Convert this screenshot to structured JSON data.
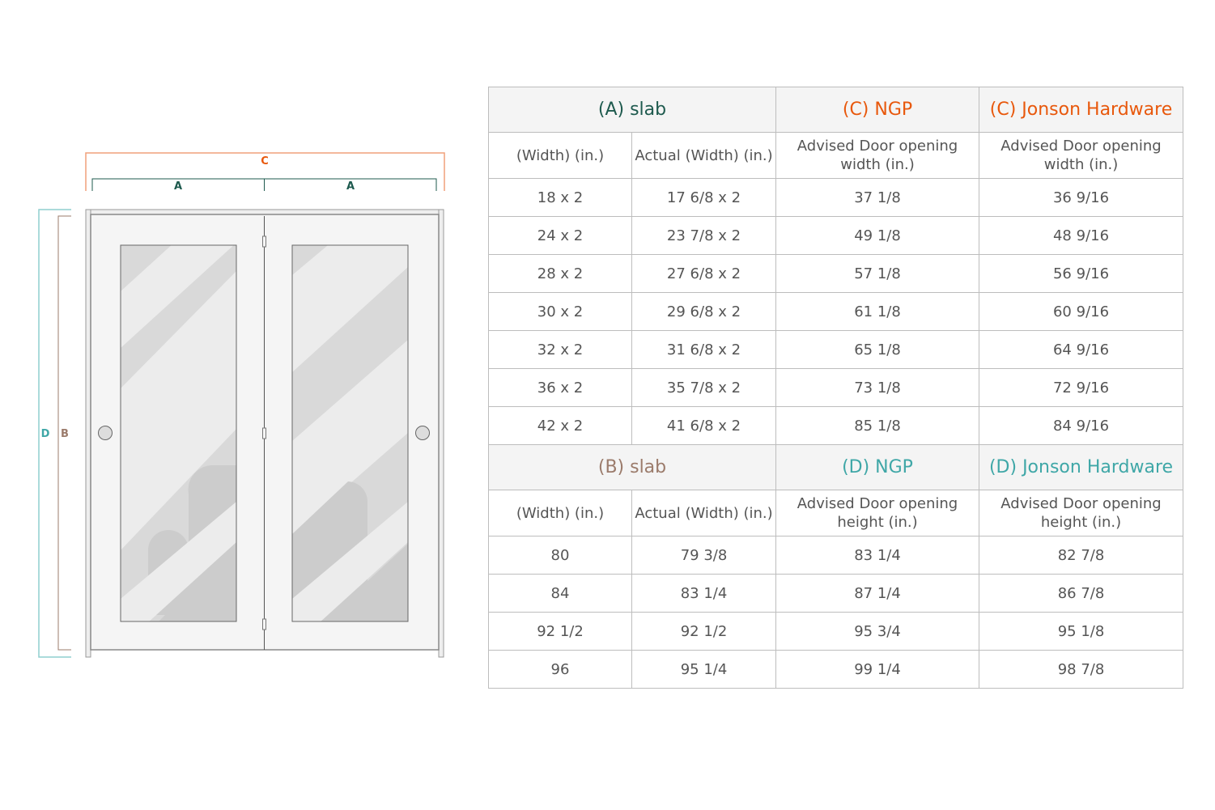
{
  "diagram": {
    "labels": {
      "a_left": "A",
      "a_right": "A",
      "c": "C",
      "d": "D",
      "b": "B"
    },
    "colors": {
      "a": "#1e5a4e",
      "c": "#e8580c",
      "b": "#9b7b6b",
      "d": "#3fa7a7"
    }
  },
  "width_table": {
    "group_headers": [
      "(A) slab",
      "(C) NGP",
      "(C) Jonson Hardware"
    ],
    "columns": [
      "(Width) (in.)",
      "Actual (Width) (in.)",
      "Advised Door opening width (in.)",
      "Advised Door opening width (in.)"
    ],
    "rows": [
      [
        "18 x 2",
        "17 6/8 x 2",
        "37 1/8",
        "36 9/16"
      ],
      [
        "24 x 2",
        "23 7/8 x 2",
        "49 1/8",
        "48 9/16"
      ],
      [
        "28 x 2",
        "27 6/8 x 2",
        "57 1/8",
        "56 9/16"
      ],
      [
        "30 x 2",
        "29 6/8 x 2",
        "61 1/8",
        "60 9/16"
      ],
      [
        "32 x 2",
        "31 6/8 x 2",
        "65 1/8",
        "64 9/16"
      ],
      [
        "36 x 2",
        "35 7/8 x 2",
        "73 1/8",
        "72 9/16"
      ],
      [
        "42 x 2",
        "41 6/8 x 2",
        "85 1/8",
        "84 9/16"
      ]
    ]
  },
  "height_table": {
    "group_headers": [
      "(B) slab",
      "(D) NGP",
      "(D) Jonson Hardware"
    ],
    "columns": [
      "(Width) (in.)",
      "Actual (Width) (in.)",
      "Advised Door opening height (in.)",
      "Advised Door opening height (in.)"
    ],
    "rows": [
      [
        "80",
        "79 3/8",
        "83 1/4",
        "82 7/8"
      ],
      [
        "84",
        "83 1/4",
        "87 1/4",
        "86 7/8"
      ],
      [
        "92 1/2",
        "92 1/2",
        "95 3/4",
        "95 1/8"
      ],
      [
        "96",
        "95 1/4",
        "99 1/4",
        "98 7/8"
      ]
    ]
  }
}
